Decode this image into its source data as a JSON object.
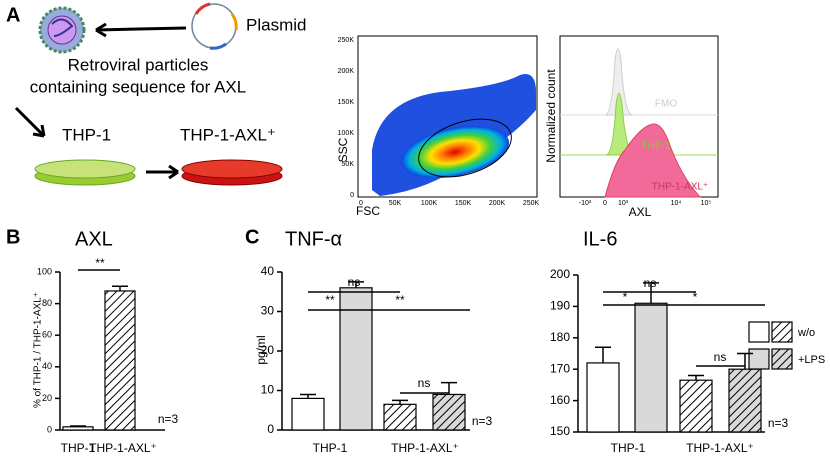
{
  "panel_letters": [
    "A",
    "B",
    "C"
  ],
  "panel_a": {
    "plasmid_label": "Plasmid",
    "virus_label": [
      "Retroviral particles",
      "containing sequence for AXL"
    ],
    "cell_labels": [
      "THP-1",
      "THP-1-AXL⁺"
    ],
    "flow": {
      "xlabel": "FSC",
      "ylabel": "SSC",
      "xticks": [
        "0",
        "50K",
        "100K",
        "150K",
        "200K",
        "250K"
      ],
      "yticks": [
        "0",
        "50K",
        "100K",
        "150K",
        "200K",
        "250K"
      ]
    },
    "histogram": {
      "xlabel": "AXL",
      "ylabel": "Normalized count",
      "xticks": [
        "-10³",
        "0",
        "10³",
        "10⁴",
        "10⁵"
      ],
      "labels": [
        "FMO",
        "THP-1",
        "THP-1-AXL⁺"
      ]
    }
  },
  "chart_data": [
    {
      "type": "bar",
      "title": "AXL",
      "ylabel": "% of THP-1 / THP-1-AXL⁺",
      "categories": [
        "THP-1",
        "THP-1-AXL⁺"
      ],
      "values": [
        2,
        88
      ],
      "errors": [
        0.5,
        3
      ],
      "colors": [
        "#ffffff",
        "#ffffff"
      ],
      "patterns": [
        "solid",
        "hatch"
      ],
      "ylim": [
        0,
        100
      ],
      "yticks": [
        0,
        20,
        40,
        60,
        80,
        100
      ],
      "annotations": [
        "**",
        "n=3"
      ]
    },
    {
      "type": "grouped_bar",
      "title": "TNF-α",
      "ylabel": "pg/ml",
      "categories": [
        "THP-1",
        "THP-1-AXL⁺"
      ],
      "patterns": [
        "solid",
        "hatch"
      ],
      "series": [
        {
          "name": "w/o",
          "color": "#ffffff",
          "values": [
            8,
            6.5
          ],
          "errors": [
            1,
            1
          ]
        },
        {
          "name": "+LPS",
          "color": "#d9d9d9",
          "values": [
            36,
            9
          ],
          "errors": [
            1.5,
            3
          ]
        }
      ],
      "ylim": [
        0,
        40
      ],
      "yticks": [
        0,
        10,
        20,
        30,
        40
      ],
      "annotations": [
        "ns",
        "**",
        "**",
        "ns",
        "n=3"
      ]
    },
    {
      "type": "grouped_bar",
      "title": "IL-6",
      "categories": [
        "THP-1",
        "THP-1-AXL⁺"
      ],
      "patterns": [
        "solid",
        "hatch"
      ],
      "series": [
        {
          "color": "#ffffff",
          "values": [
            172,
            166.5
          ],
          "errors": [
            5,
            1.5
          ]
        },
        {
          "color": "#d9d9d9",
          "values": [
            191,
            170
          ],
          "errors": [
            6.5,
            5
          ]
        }
      ],
      "ylim": [
        150,
        200
      ],
      "yticks": [
        150,
        160,
        170,
        180,
        190,
        200
      ],
      "annotations": [
        "ns",
        "*",
        "*",
        "ns",
        "n=3"
      ]
    }
  ]
}
